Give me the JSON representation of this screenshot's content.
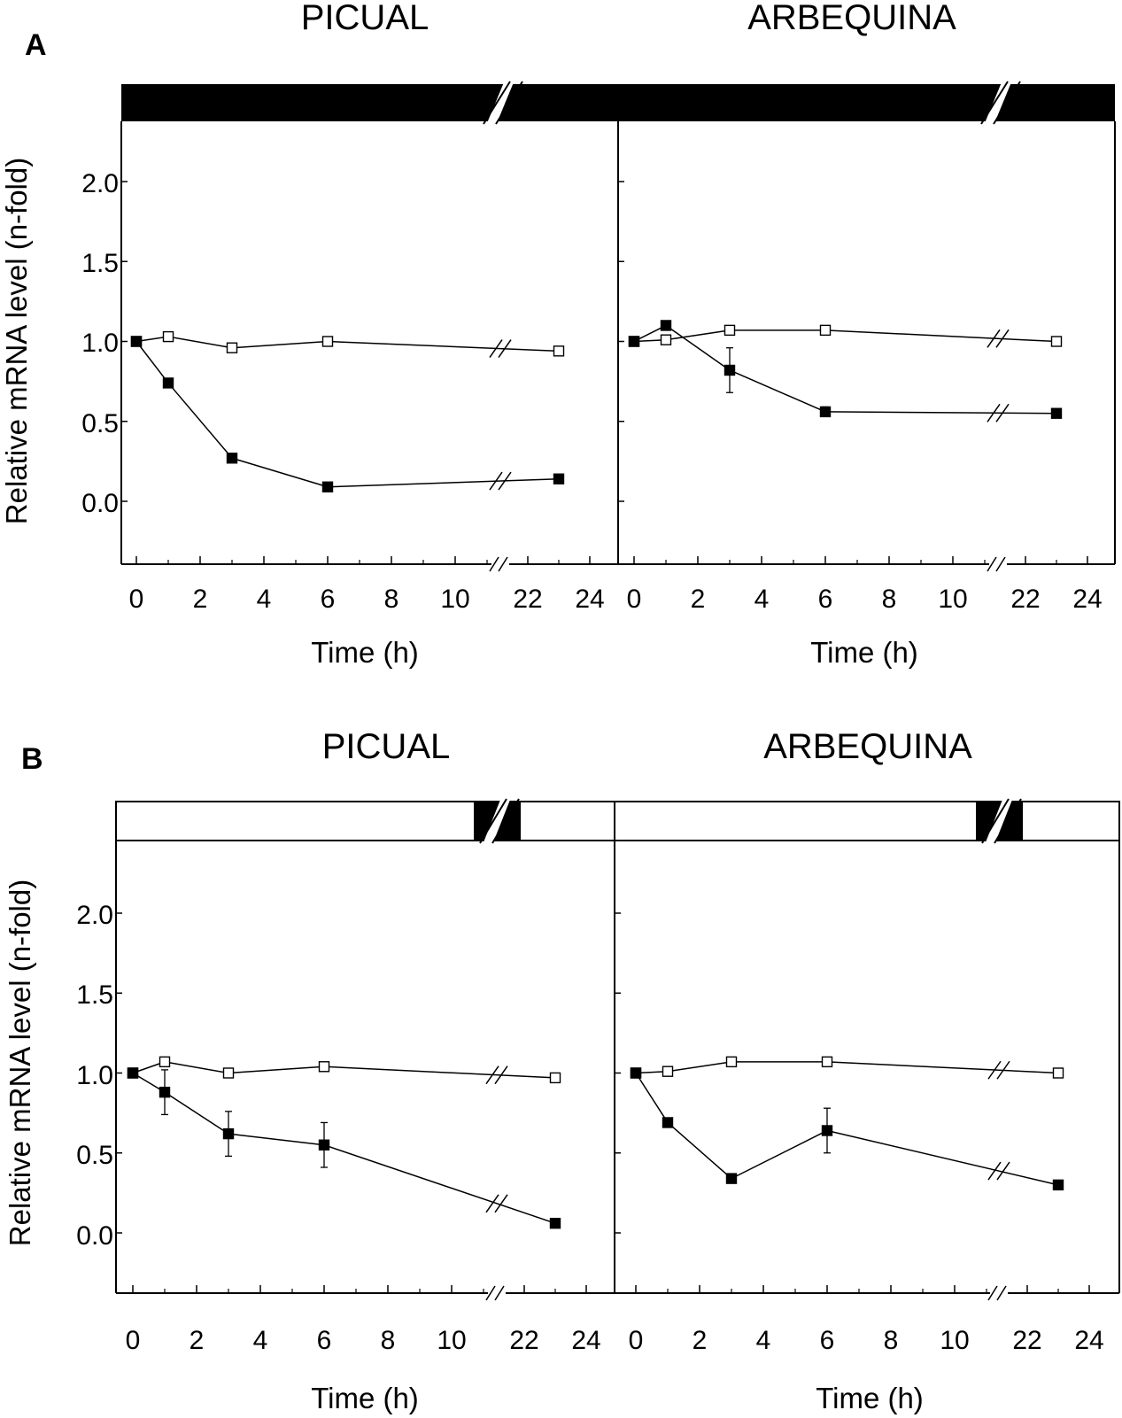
{
  "figure": {
    "x_axis_label": "Time (h)",
    "y_axis_label": "Relative mRNA level (n-fold)",
    "x_ticks": [
      "0",
      "2",
      "4",
      "6",
      "8",
      "10",
      "22",
      "24"
    ],
    "y_ticks": [
      "2.0",
      "1.5",
      "1.0",
      "0.5",
      "0.0"
    ],
    "colors": {
      "ink": "#000000",
      "background": "#ffffff"
    }
  },
  "chart_data": [
    {
      "type": "line",
      "panel": "A",
      "title": "PICUAL",
      "light_bar": [
        "dark",
        "dark"
      ],
      "xlabel": "Time (h)",
      "ylabel": "Relative mRNA level (n-fold)",
      "ylim": [
        -0.4,
        2.4
      ],
      "x_break": [
        11,
        22
      ],
      "series": [
        {
          "name": "open squares",
          "marker": "open",
          "x": [
            0,
            1,
            3,
            6,
            23
          ],
          "y": [
            1.0,
            1.03,
            0.96,
            1.0,
            0.94
          ],
          "err": [
            0,
            0,
            0,
            0,
            0
          ]
        },
        {
          "name": "filled squares",
          "marker": "filled",
          "x": [
            0,
            1,
            3,
            6,
            23
          ],
          "y": [
            1.0,
            0.74,
            0.27,
            0.09,
            0.14
          ],
          "err": [
            0,
            0,
            0,
            0,
            0
          ]
        }
      ]
    },
    {
      "type": "line",
      "panel": "A",
      "title": "ARBEQUINA",
      "light_bar": [
        "dark",
        "dark"
      ],
      "xlabel": "Time (h)",
      "ylabel": "",
      "ylim": [
        -0.4,
        2.4
      ],
      "x_break": [
        11,
        22
      ],
      "series": [
        {
          "name": "open squares",
          "marker": "open",
          "x": [
            0,
            1,
            3,
            6,
            23
          ],
          "y": [
            1.0,
            1.01,
            1.07,
            1.07,
            1.0
          ],
          "err": [
            0,
            0,
            0,
            0,
            0
          ]
        },
        {
          "name": "filled squares",
          "marker": "filled",
          "x": [
            0,
            1,
            3,
            6,
            23
          ],
          "y": [
            1.0,
            1.1,
            0.82,
            0.56,
            0.55
          ],
          "err": [
            0,
            0,
            0.14,
            0.03,
            0
          ]
        }
      ]
    },
    {
      "type": "line",
      "panel": "B",
      "title": "PICUAL",
      "light_bar": [
        "light",
        "dark",
        "light"
      ],
      "xlabel": "Time (h)",
      "ylabel": "Relative mRNA level (n-fold)",
      "ylim": [
        -0.4,
        2.4
      ],
      "x_break": [
        11,
        22
      ],
      "series": [
        {
          "name": "open squares",
          "marker": "open",
          "x": [
            0,
            1,
            3,
            6,
            23
          ],
          "y": [
            1.0,
            1.07,
            1.0,
            1.04,
            0.97
          ],
          "err": [
            0,
            0,
            0,
            0,
            0
          ]
        },
        {
          "name": "filled squares",
          "marker": "filled",
          "x": [
            0,
            1,
            3,
            6,
            23
          ],
          "y": [
            1.0,
            0.88,
            0.62,
            0.55,
            0.06
          ],
          "err": [
            0,
            0.14,
            0.14,
            0.14,
            0
          ]
        }
      ]
    },
    {
      "type": "line",
      "panel": "B",
      "title": "ARBEQUINA",
      "light_bar": [
        "light",
        "dark",
        "light"
      ],
      "xlabel": "Time (h)",
      "ylabel": "",
      "ylim": [
        -0.4,
        2.4
      ],
      "x_break": [
        11,
        22
      ],
      "series": [
        {
          "name": "open squares",
          "marker": "open",
          "x": [
            0,
            1,
            3,
            6,
            23
          ],
          "y": [
            1.0,
            1.01,
            1.07,
            1.07,
            1.0
          ],
          "err": [
            0,
            0,
            0,
            0,
            0
          ]
        },
        {
          "name": "filled squares",
          "marker": "filled",
          "x": [
            0,
            1,
            3,
            6,
            23
          ],
          "y": [
            1.0,
            0.69,
            0.34,
            0.64,
            0.3
          ],
          "err": [
            0,
            0,
            0,
            0.14,
            0
          ]
        }
      ]
    }
  ],
  "panels": [
    {
      "letter": "A",
      "left_title": "PICUAL",
      "right_title": "ARBEQUINA"
    },
    {
      "letter": "B",
      "left_title": "PICUAL",
      "right_title": "ARBEQUINA"
    }
  ]
}
